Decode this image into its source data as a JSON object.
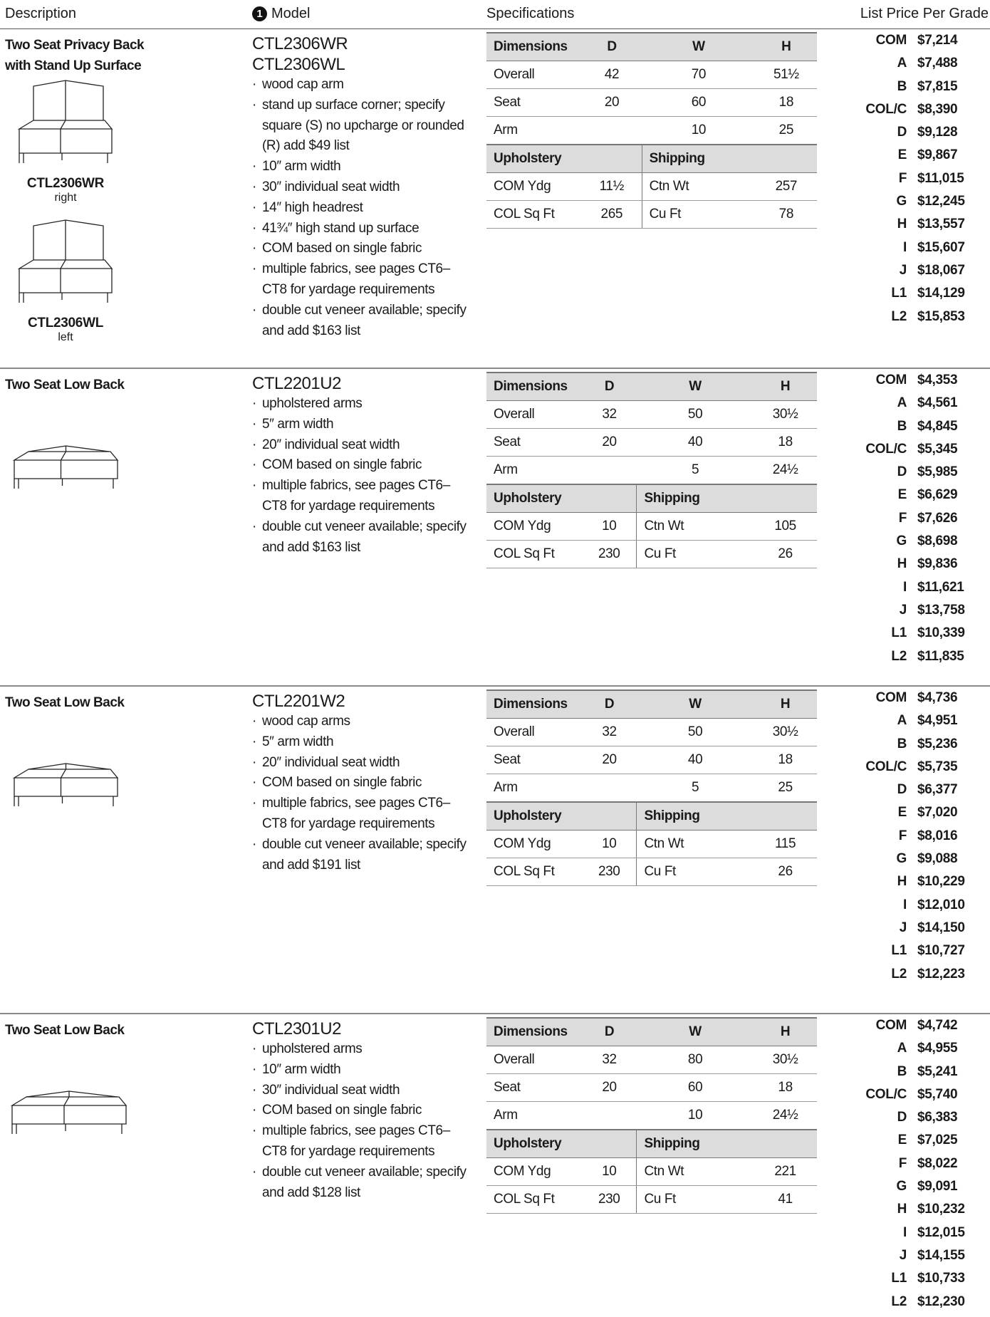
{
  "header": {
    "description": "Description",
    "marker": "1",
    "model": "Model",
    "specifications": "Specifications",
    "price": "List Price Per Grade"
  },
  "products": [
    {
      "description": [
        "Two Seat Privacy Back",
        "with Stand Up Surface"
      ],
      "models": [
        "CTL2306WR",
        "CTL2306WL"
      ],
      "images": [
        {
          "caption": "CTL2306WR",
          "subcaption": "right"
        },
        {
          "caption": "CTL2306WL",
          "subcaption": "left"
        }
      ],
      "features": [
        "wood cap arm",
        "stand up surface corner; specify square (S) no upcharge or rounded (R) add $49 list",
        "10″ arm width",
        "30″ individual seat width",
        "14″ high headrest",
        "41¾″ high stand up surface",
        "COM based on single fabric",
        "multiple fabrics, see pages CT6–CT8 for yardage requirements",
        "double cut veneer available; specify and add $163 list"
      ],
      "specs": {
        "dimensions_header": [
          "Dimensions",
          "D",
          "W",
          "H"
        ],
        "dimensions": [
          [
            "Overall",
            "42",
            "70",
            "51½"
          ],
          [
            "Seat",
            "20",
            "60",
            "18"
          ],
          [
            "Arm",
            "",
            "10",
            "25"
          ]
        ],
        "upholstery_header": [
          "Upholstery",
          "Shipping"
        ],
        "upholstery": [
          [
            "COM Ydg",
            "11½",
            "Ctn Wt",
            "257"
          ],
          [
            "COL Sq Ft",
            "265",
            "Cu Ft",
            "78"
          ]
        ]
      },
      "prices": [
        [
          "COM",
          "$7,214"
        ],
        [
          "A",
          "$7,488"
        ],
        [
          "B",
          "$7,815"
        ],
        [
          "COL/C",
          "$8,390"
        ],
        [
          "D",
          "$9,128"
        ],
        [
          "E",
          "$9,867"
        ],
        [
          "F",
          "$11,015"
        ],
        [
          "G",
          "$12,245"
        ],
        [
          "H",
          "$13,557"
        ],
        [
          "I",
          "$15,607"
        ],
        [
          "J",
          "$18,067"
        ],
        [
          "L1",
          "$14,129"
        ],
        [
          "L2",
          "$15,853"
        ]
      ]
    },
    {
      "description": [
        "Two Seat Low Back"
      ],
      "models": [
        "CTL2201U2"
      ],
      "images": [],
      "features": [
        "upholstered arms",
        "5″ arm width",
        "20″ individual seat width",
        "COM based on single fabric",
        "multiple fabrics, see pages CT6–CT8 for yardage requirements",
        "double cut veneer available; specify and add $163 list"
      ],
      "specs": {
        "dimensions_header": [
          "Dimensions",
          "D",
          "W",
          "H"
        ],
        "dimensions": [
          [
            "Overall",
            "32",
            "50",
            "30½"
          ],
          [
            "Seat",
            "20",
            "40",
            "18"
          ],
          [
            "Arm",
            "",
            "5",
            "24½"
          ]
        ],
        "upholstery_header": [
          "Upholstery",
          "Shipping"
        ],
        "upholstery": [
          [
            "COM Ydg",
            "10",
            "Ctn Wt",
            "105"
          ],
          [
            "COL Sq Ft",
            "230",
            "Cu Ft",
            "26"
          ]
        ]
      },
      "prices": [
        [
          "COM",
          "$4,353"
        ],
        [
          "A",
          "$4,561"
        ],
        [
          "B",
          "$4,845"
        ],
        [
          "COL/C",
          "$5,345"
        ],
        [
          "D",
          "$5,985"
        ],
        [
          "E",
          "$6,629"
        ],
        [
          "F",
          "$7,626"
        ],
        [
          "G",
          "$8,698"
        ],
        [
          "H",
          "$9,836"
        ],
        [
          "I",
          "$11,621"
        ],
        [
          "J",
          "$13,758"
        ],
        [
          "L1",
          "$10,339"
        ],
        [
          "L2",
          "$11,835"
        ]
      ]
    },
    {
      "description": [
        "Two Seat Low Back"
      ],
      "models": [
        "CTL2201W2"
      ],
      "images": [],
      "features": [
        "wood cap arms",
        "5″ arm width",
        "20″ individual seat width",
        "COM based on single fabric",
        "multiple fabrics, see pages CT6–CT8 for yardage requirements",
        "double cut veneer available; specify and add $191 list"
      ],
      "specs": {
        "dimensions_header": [
          "Dimensions",
          "D",
          "W",
          "H"
        ],
        "dimensions": [
          [
            "Overall",
            "32",
            "50",
            "30½"
          ],
          [
            "Seat",
            "20",
            "40",
            "18"
          ],
          [
            "Arm",
            "",
            "5",
            "25"
          ]
        ],
        "upholstery_header": [
          "Upholstery",
          "Shipping"
        ],
        "upholstery": [
          [
            "COM Ydg",
            "10",
            "Ctn Wt",
            "115"
          ],
          [
            "COL Sq Ft",
            "230",
            "Cu Ft",
            "26"
          ]
        ]
      },
      "prices": [
        [
          "COM",
          "$4,736"
        ],
        [
          "A",
          "$4,951"
        ],
        [
          "B",
          "$5,236"
        ],
        [
          "COL/C",
          "$5,735"
        ],
        [
          "D",
          "$6,377"
        ],
        [
          "E",
          "$7,020"
        ],
        [
          "F",
          "$8,016"
        ],
        [
          "G",
          "$9,088"
        ],
        [
          "H",
          "$10,229"
        ],
        [
          "I",
          "$12,010"
        ],
        [
          "J",
          "$14,150"
        ],
        [
          "L1",
          "$10,727"
        ],
        [
          "L2",
          "$12,223"
        ]
      ]
    },
    {
      "description": [
        "Two Seat Low Back"
      ],
      "models": [
        "CTL2301U2"
      ],
      "images": [],
      "features": [
        "upholstered arms",
        "10″ arm width",
        "30″ individual seat width",
        "COM based on single fabric",
        "multiple fabrics, see pages CT6–CT8 for yardage requirements",
        "double cut veneer available; specify and add $128 list"
      ],
      "specs": {
        "dimensions_header": [
          "Dimensions",
          "D",
          "W",
          "H"
        ],
        "dimensions": [
          [
            "Overall",
            "32",
            "80",
            "30½"
          ],
          [
            "Seat",
            "20",
            "60",
            "18"
          ],
          [
            "Arm",
            "",
            "10",
            "24½"
          ]
        ],
        "upholstery_header": [
          "Upholstery",
          "Shipping"
        ],
        "upholstery": [
          [
            "COM Ydg",
            "10",
            "Ctn Wt",
            "221"
          ],
          [
            "COL Sq Ft",
            "230",
            "Cu Ft",
            "41"
          ]
        ]
      },
      "prices": [
        [
          "COM",
          "$4,742"
        ],
        [
          "A",
          "$4,955"
        ],
        [
          "B",
          "$5,241"
        ],
        [
          "COL/C",
          "$5,740"
        ],
        [
          "D",
          "$6,383"
        ],
        [
          "E",
          "$7,025"
        ],
        [
          "F",
          "$8,022"
        ],
        [
          "G",
          "$9,091"
        ],
        [
          "H",
          "$10,232"
        ],
        [
          "I",
          "$12,015"
        ],
        [
          "J",
          "$14,155"
        ],
        [
          "L1",
          "$10,733"
        ],
        [
          "L2",
          "$12,230"
        ]
      ]
    }
  ]
}
